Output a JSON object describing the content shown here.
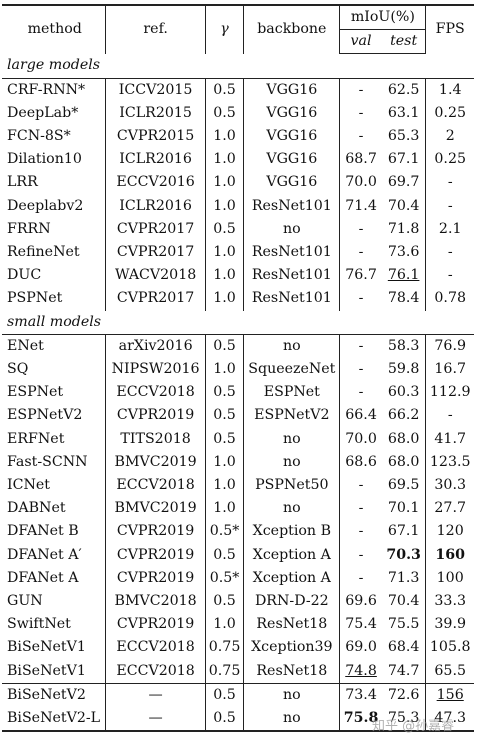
{
  "header": {
    "method": "method",
    "ref": "ref.",
    "gamma": "γ",
    "backbone": "backbone",
    "miou": "mIoU(%)",
    "val": "val",
    "test": "test",
    "fps": "FPS"
  },
  "sections": [
    {
      "title": "large models",
      "rows": [
        {
          "method": "CRF-RNN*",
          "ref": "ICCV2015",
          "gamma": "0.5",
          "backbone": "VGG16",
          "val": "-",
          "test": "62.5",
          "fps": "1.4"
        },
        {
          "method": "DeepLab*",
          "ref": "ICLR2015",
          "gamma": "0.5",
          "backbone": "VGG16",
          "val": "-",
          "test": "63.1",
          "fps": "0.25"
        },
        {
          "method": "FCN-8S*",
          "ref": "CVPR2015",
          "gamma": "1.0",
          "backbone": "VGG16",
          "val": "-",
          "test": "65.3",
          "fps": "2"
        },
        {
          "method": "Dilation10",
          "ref": "ICLR2016",
          "gamma": "1.0",
          "backbone": "VGG16",
          "val": "68.7",
          "test": "67.1",
          "fps": "0.25"
        },
        {
          "method": "LRR",
          "ref": "ECCV2016",
          "gamma": "1.0",
          "backbone": "VGG16",
          "val": "70.0",
          "test": "69.7",
          "fps": "-"
        },
        {
          "method": "Deeplabv2",
          "ref": "ICLR2016",
          "gamma": "1.0",
          "backbone": "ResNet101",
          "val": "71.4",
          "test": "70.4",
          "fps": "-"
        },
        {
          "method": "FRRN",
          "ref": "CVPR2017",
          "gamma": "0.5",
          "backbone": "no",
          "val": "-",
          "test": "71.8",
          "fps": "2.1"
        },
        {
          "method": "RefineNet",
          "ref": "CVPR2017",
          "gamma": "1.0",
          "backbone": "ResNet101",
          "val": "-",
          "test": "73.6",
          "fps": "-"
        },
        {
          "method": "DUC",
          "ref": "WACV2018",
          "gamma": "1.0",
          "backbone": "ResNet101",
          "val": "76.7",
          "test": "76.1",
          "fps": "-"
        },
        {
          "method": "PSPNet",
          "ref": "CVPR2017",
          "gamma": "1.0",
          "backbone": "ResNet101",
          "val": "-",
          "test": "78.4",
          "fps": "0.78"
        }
      ]
    },
    {
      "title": "small models",
      "rows": [
        {
          "method": "ENet",
          "ref": "arXiv2016",
          "gamma": "0.5",
          "backbone": "no",
          "val": "-",
          "test": "58.3",
          "fps": "76.9"
        },
        {
          "method": "SQ",
          "ref": "NIPSW2016",
          "gamma": "1.0",
          "backbone": "SqueezeNet",
          "val": "-",
          "test": "59.8",
          "fps": "16.7"
        },
        {
          "method": "ESPNet",
          "ref": "ECCV2018",
          "gamma": "0.5",
          "backbone": "ESPNet",
          "val": "-",
          "test": "60.3",
          "fps": "112.9"
        },
        {
          "method": "ESPNetV2",
          "ref": "CVPR2019",
          "gamma": "0.5",
          "backbone": "ESPNetV2",
          "val": "66.4",
          "test": "66.2",
          "fps": "-"
        },
        {
          "method": "ERFNet",
          "ref": "TITS2018",
          "gamma": "0.5",
          "backbone": "no",
          "val": "70.0",
          "test": "68.0",
          "fps": "41.7"
        },
        {
          "method": "Fast-SCNN",
          "ref": "BMVC2019",
          "gamma": "1.0",
          "backbone": "no",
          "val": "68.6",
          "test": "68.0",
          "fps": "123.5"
        },
        {
          "method": "ICNet",
          "ref": "ECCV2018",
          "gamma": "1.0",
          "backbone": "PSPNet50",
          "val": "-",
          "test": "69.5",
          "fps": "30.3"
        },
        {
          "method": "DABNet",
          "ref": "BMVC2019",
          "gamma": "1.0",
          "backbone": "no",
          "val": "-",
          "test": "70.1",
          "fps": "27.7"
        },
        {
          "method": "DFANet B",
          "ref": "CVPR2019",
          "gamma": "0.5*",
          "backbone": "Xception B",
          "val": "-",
          "test": "67.1",
          "fps": "120"
        },
        {
          "method": "DFANet A′",
          "ref": "CVPR2019",
          "gamma": "0.5",
          "backbone": "Xception A",
          "val": "-",
          "test": "70.3",
          "fps": "160"
        },
        {
          "method": "DFANet A",
          "ref": "CVPR2019",
          "gamma": "0.5*",
          "backbone": "Xception A",
          "val": "-",
          "test": "71.3",
          "fps": "100"
        },
        {
          "method": "GUN",
          "ref": "BMVC2018",
          "gamma": "0.5",
          "backbone": "DRN-D-22",
          "val": "69.6",
          "test": "70.4",
          "fps": "33.3"
        },
        {
          "method": "SwiftNet",
          "ref": "CVPR2019",
          "gamma": "1.0",
          "backbone": "ResNet18",
          "val": "75.4",
          "test": "75.5",
          "fps": "39.9"
        },
        {
          "method": "BiSeNetV1",
          "ref": "ECCV2018",
          "gamma": "0.75",
          "backbone": "Xception39",
          "val": "69.0",
          "test": "68.4",
          "fps": "105.8"
        },
        {
          "method": "BiSeNetV1",
          "ref": "ECCV2018",
          "gamma": "0.75",
          "backbone": "ResNet18",
          "val": "74.8",
          "test": "74.7",
          "fps": "65.5"
        }
      ]
    },
    {
      "title": "",
      "rows": [
        {
          "method": "BiSeNetV2",
          "ref": "—",
          "gamma": "0.5",
          "backbone": "no",
          "val": "73.4",
          "test": "72.6",
          "fps": "156"
        },
        {
          "method": "BiSeNetV2-L",
          "ref": "—",
          "gamma": "0.5",
          "backbone": "no",
          "val": "75.8",
          "test": "75.3",
          "fps": "47.3"
        }
      ]
    }
  ],
  "emphasis": {
    "bold": [
      "1.9.test",
      "1.9.fps",
      "2.1.val"
    ],
    "underline": [
      "0.8.test",
      "1.14.val",
      "2.0.fps"
    ]
  },
  "watermark": "知乎 @孙嘉睿"
}
